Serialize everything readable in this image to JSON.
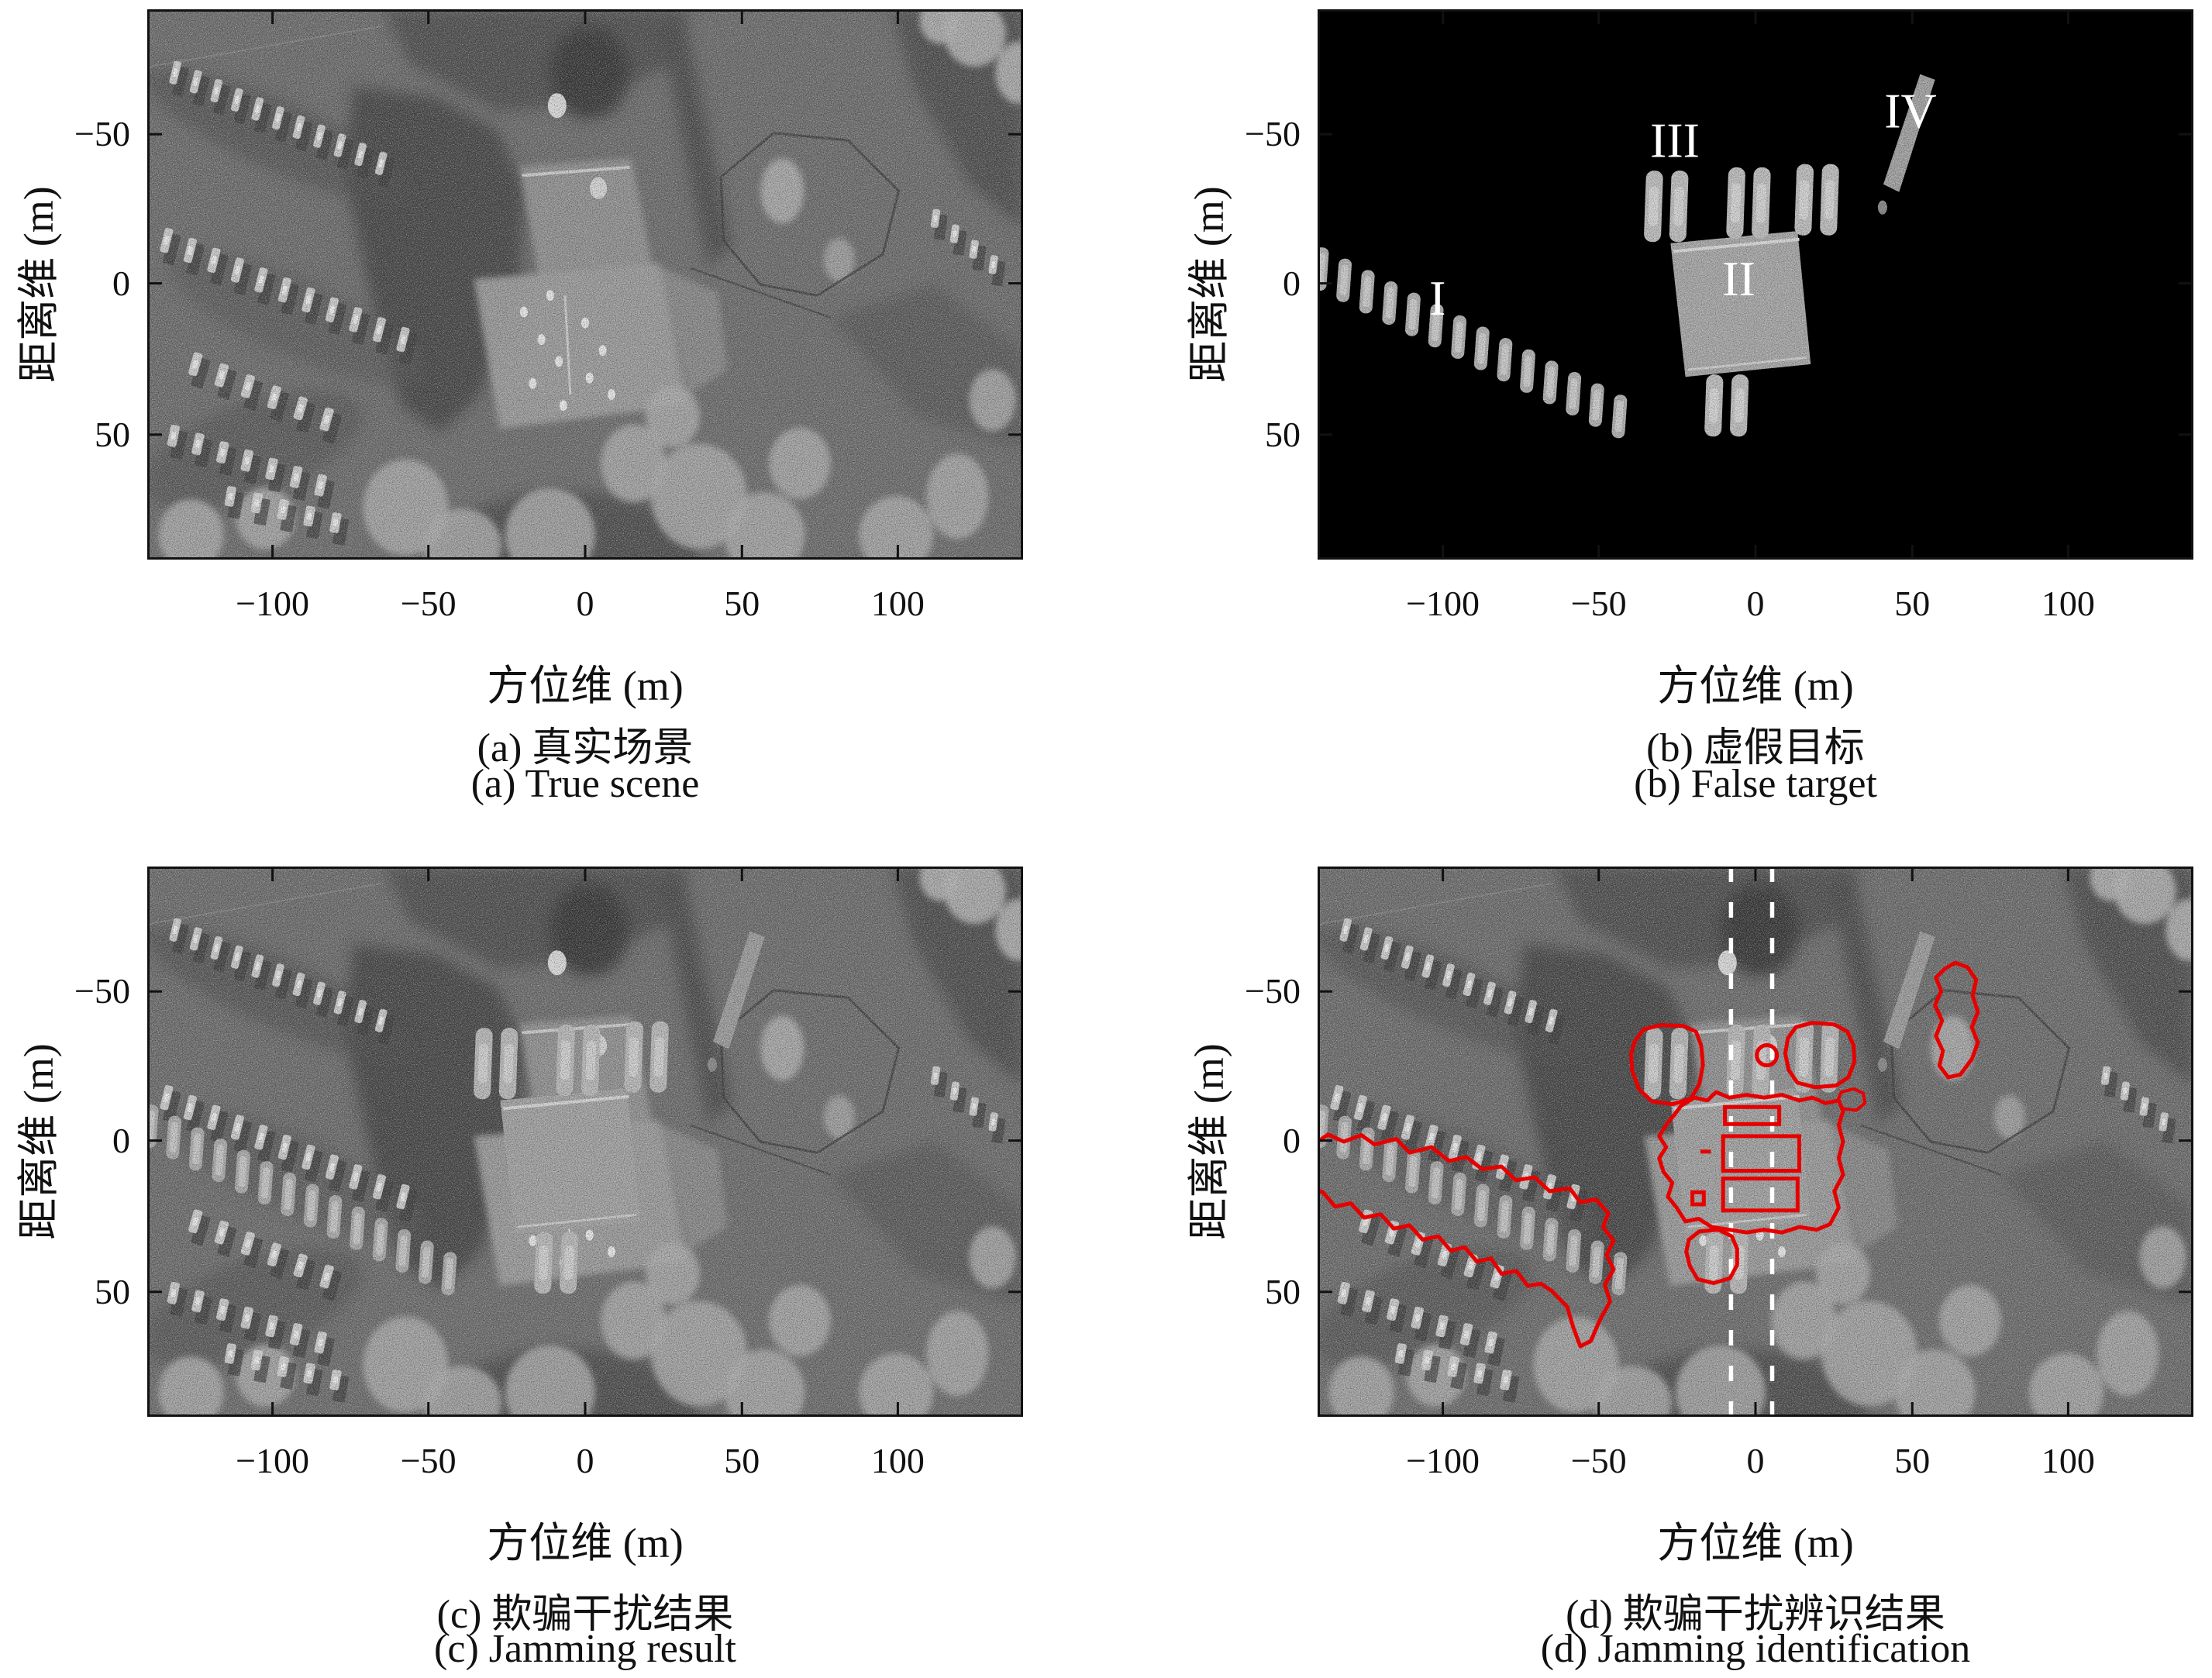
{
  "axes": {
    "xlabel": "方位维 (m)",
    "ylabel": "距离维 (m)",
    "xticks": [
      "−100",
      "−50",
      "0",
      "50",
      "100"
    ],
    "yticks": [
      "−50",
      "0",
      "50"
    ]
  },
  "panels": [
    {
      "id": "a",
      "caption_zh": "(a) 真实场景",
      "caption_en": "(a) True scene"
    },
    {
      "id": "b",
      "caption_zh": "(b) 虚假目标",
      "caption_en": "(b) False target",
      "overlay_labels": [
        "I",
        "II",
        "III",
        "IV"
      ]
    },
    {
      "id": "c",
      "caption_zh": "(c) 欺骗干扰结果",
      "caption_en": "(c) Jamming result"
    },
    {
      "id": "d",
      "caption_zh": "(d) 欺骗干扰辨识结果",
      "caption_en": "(d) Jamming identification"
    }
  ],
  "colors": {
    "identification_contour": "#e60000",
    "divider_dashed_lines": "#ffffff",
    "false_target_background": "#000000",
    "axis_line": "#111111"
  }
}
